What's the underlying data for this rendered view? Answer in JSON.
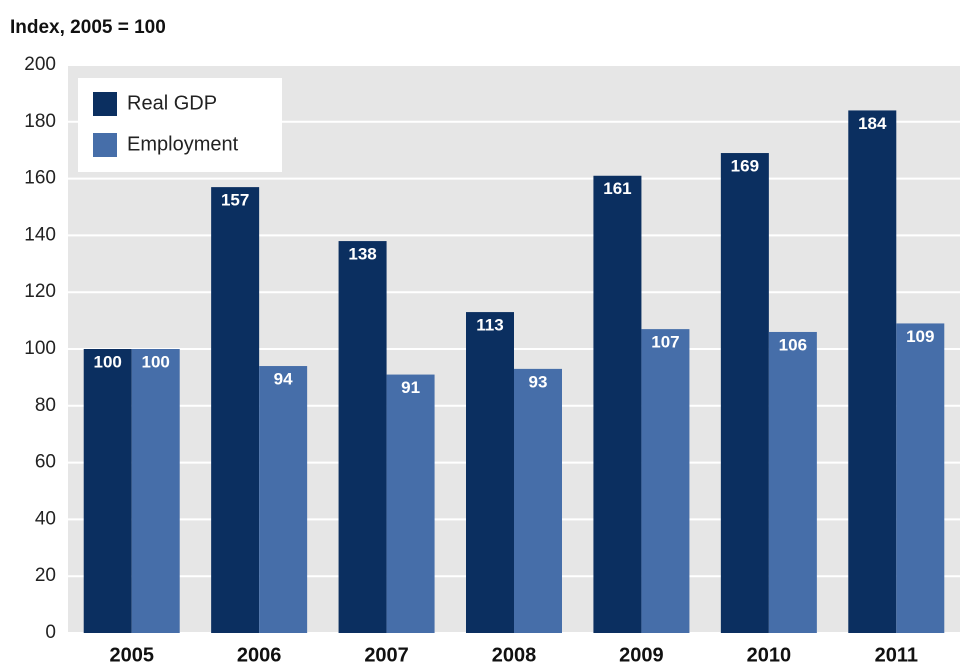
{
  "chart_data": {
    "type": "bar",
    "title": "Index, 2005 = 100",
    "categories": [
      "2005",
      "2006",
      "2007",
      "2008",
      "2009",
      "2010",
      "2011"
    ],
    "series": [
      {
        "name": "Real GDP",
        "color": "#0b2f60",
        "values": [
          100,
          157,
          138,
          113,
          161,
          169,
          184
        ]
      },
      {
        "name": "Employment",
        "color": "#466ea9",
        "values": [
          100,
          94,
          91,
          93,
          107,
          106,
          109
        ]
      }
    ],
    "ylim": [
      0,
      200
    ],
    "yticks": [
      0,
      20,
      40,
      60,
      80,
      100,
      120,
      140,
      160,
      180,
      200
    ],
    "grid": true,
    "legend": "upper left"
  }
}
